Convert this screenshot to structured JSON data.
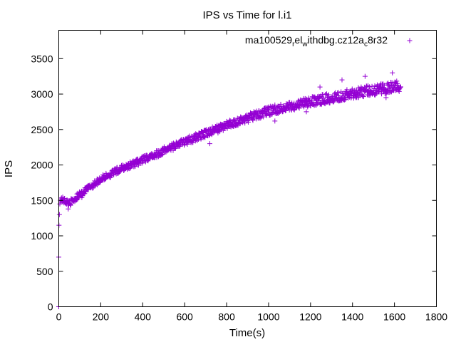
{
  "chart_data": {
    "type": "scatter",
    "title": "IPS vs Time for l.i1",
    "xlabel": "Time(s)",
    "ylabel": "IPS",
    "xlim": [
      0,
      1800
    ],
    "ylim": [
      0,
      3900
    ],
    "xticks": [
      0,
      200,
      400,
      600,
      800,
      1000,
      1200,
      1400,
      1600,
      1800
    ],
    "yticks": [
      0,
      500,
      1000,
      1500,
      2000,
      2500,
      3000,
      3500
    ],
    "grid": false,
    "legend_position": "top-right",
    "marker": "+",
    "series": [
      {
        "name": "ma100529_el_withdbg.cz12a_c8r32",
        "legend_parts": [
          {
            "text": "ma100529",
            "sub": false
          },
          {
            "text": "r",
            "sub": true
          },
          {
            "text": "el",
            "sub": false
          },
          {
            "text": "w",
            "sub": true
          },
          {
            "text": "ithdbg.cz12a",
            "sub": false
          },
          {
            "text": "c",
            "sub": true
          },
          {
            "text": "8r32",
            "sub": false
          }
        ],
        "color": "#9400d3",
        "start_points": [
          [
            0,
            0
          ],
          [
            0,
            700
          ],
          [
            1,
            1150
          ],
          [
            3,
            1300
          ],
          [
            5,
            1450
          ],
          [
            8,
            1500
          ]
        ],
        "trend": [
          [
            10,
            1520
          ],
          [
            50,
            1460
          ],
          [
            100,
            1580
          ],
          [
            200,
            1800
          ],
          [
            300,
            1950
          ],
          [
            400,
            2070
          ],
          [
            500,
            2200
          ],
          [
            600,
            2330
          ],
          [
            700,
            2440
          ],
          [
            800,
            2560
          ],
          [
            900,
            2660
          ],
          [
            1000,
            2760
          ],
          [
            1100,
            2830
          ],
          [
            1200,
            2890
          ],
          [
            1300,
            2950
          ],
          [
            1400,
            3010
          ],
          [
            1500,
            3060
          ],
          [
            1600,
            3100
          ],
          [
            1630,
            3120
          ]
        ],
        "spread": 60,
        "point_count": 1100,
        "outliers": [
          [
            1245,
            3100
          ],
          [
            1350,
            3200
          ],
          [
            1460,
            3250
          ],
          [
            1590,
            3300
          ],
          [
            1560,
            2950
          ],
          [
            1030,
            2620
          ],
          [
            1180,
            2750
          ],
          [
            720,
            2300
          ],
          [
            110,
            1540
          ],
          [
            45,
            1380
          ]
        ]
      }
    ]
  }
}
